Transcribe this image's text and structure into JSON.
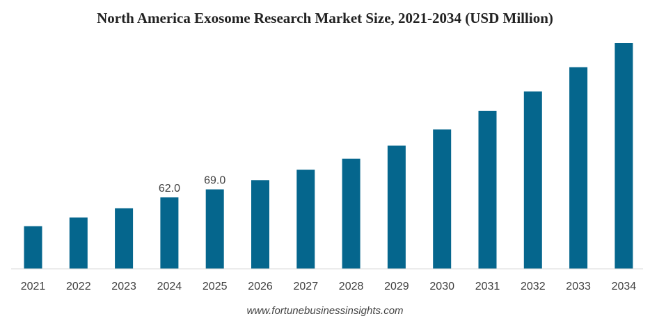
{
  "chart_data": {
    "type": "bar",
    "title": "North America Exosome Research Market Size, 2021-2034 (USD Million)",
    "xlabel": "",
    "ylabel": "",
    "categories": [
      "2021",
      "2022",
      "2023",
      "2024",
      "2025",
      "2026",
      "2027",
      "2028",
      "2029",
      "2030",
      "2031",
      "2032",
      "2033",
      "2034"
    ],
    "values": [
      37.0,
      44.5,
      52.5,
      62.0,
      69.0,
      77.0,
      86.0,
      95.5,
      107.0,
      121.0,
      137.0,
      154.0,
      175.0,
      196.0
    ],
    "data_labels": [
      {
        "category": "2024",
        "text": "62.0"
      },
      {
        "category": "2025",
        "text": "69.0"
      }
    ],
    "ylim": [
      0,
      200
    ],
    "grid": false,
    "legend": "none",
    "bar_color": "#05668d"
  },
  "footer": {
    "source": "www.fortunebusinessinsights.com"
  }
}
